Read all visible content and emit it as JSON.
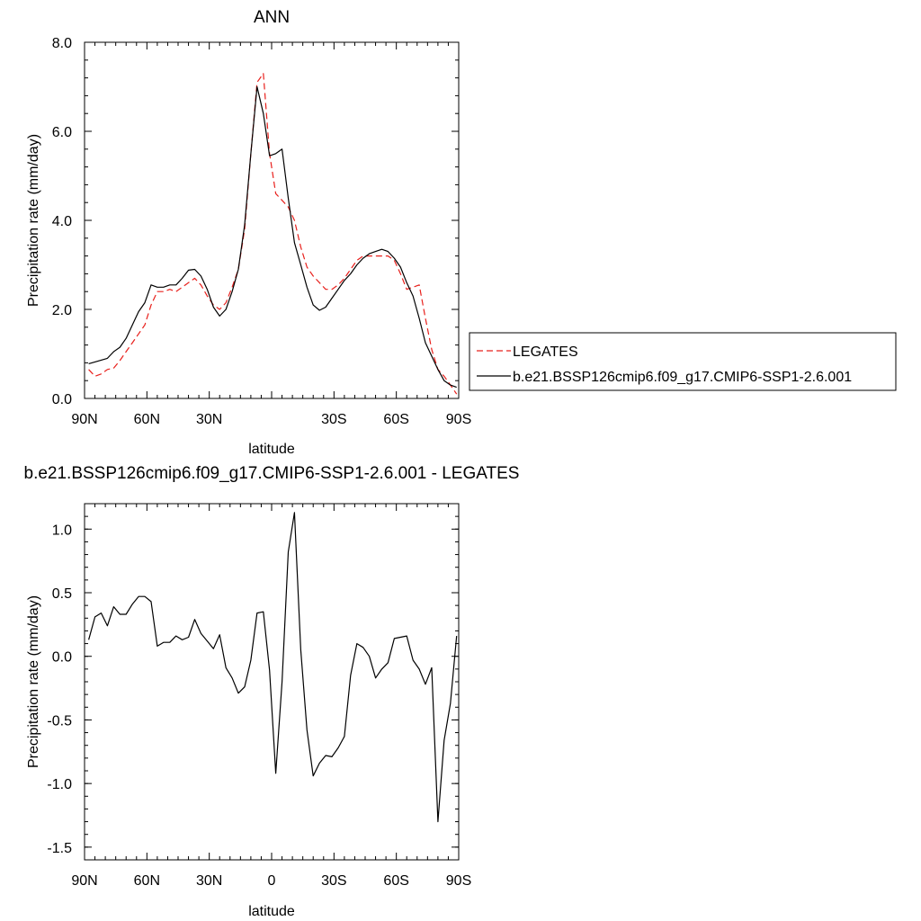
{
  "chart_data": [
    {
      "type": "line",
      "title": "ANN",
      "xlabel": "latitude",
      "ylabel": "Precipitation rate (mm/day)",
      "xlim": [
        -90,
        90
      ],
      "ylim": [
        0,
        8
      ],
      "x_ticks": [
        -90,
        -60,
        -30,
        0,
        30,
        60,
        90
      ],
      "x_tick_labels": [
        "90N",
        "60N",
        "30N",
        "",
        "30S",
        "60S",
        "90S"
      ],
      "y_ticks": [
        0,
        2,
        4,
        6,
        8
      ],
      "y_tick_labels": [
        "0.0",
        "2.0",
        "4.0",
        "6.0",
        "8.0"
      ],
      "legend_position": "right",
      "series": [
        {
          "name": "LEGATES",
          "color": "#e8201c",
          "dash": true,
          "x": [
            -88,
            -85,
            -82,
            -79,
            -76,
            -73,
            -70,
            -67,
            -64,
            -61,
            -58,
            -55,
            -52,
            -49,
            -46,
            -43,
            -40,
            -37,
            -34,
            -31,
            -28,
            -25,
            -22,
            -19,
            -16,
            -13,
            -10,
            -7,
            -4,
            -1,
            2,
            5,
            8,
            11,
            14,
            17,
            20,
            23,
            26,
            29,
            32,
            35,
            38,
            41,
            44,
            47,
            50,
            53,
            56,
            59,
            62,
            65,
            68,
            71,
            74,
            77,
            80,
            83,
            86,
            89
          ],
          "y": [
            0.65,
            0.5,
            0.55,
            0.65,
            0.68,
            0.85,
            1.05,
            1.25,
            1.45,
            1.65,
            2.1,
            2.4,
            2.4,
            2.45,
            2.4,
            2.5,
            2.6,
            2.7,
            2.55,
            2.3,
            2.1,
            2.0,
            2.15,
            2.5,
            2.9,
            3.8,
            5.5,
            7.1,
            7.3,
            5.5,
            4.6,
            4.45,
            4.3,
            4.0,
            3.4,
            2.95,
            2.75,
            2.6,
            2.45,
            2.45,
            2.55,
            2.7,
            2.9,
            3.1,
            3.2,
            3.2,
            3.2,
            3.2,
            3.2,
            3.1,
            2.8,
            2.45,
            2.5,
            2.55,
            1.8,
            1.1,
            0.65,
            0.5,
            0.3,
            0.1
          ]
        },
        {
          "name": "b.e21.BSSP126cmip6.f09_g17.CMIP6-SSP1-2.6.001",
          "color": "#000000",
          "dash": false,
          "x": [
            -88,
            -85,
            -82,
            -79,
            -76,
            -73,
            -70,
            -67,
            -64,
            -61,
            -58,
            -55,
            -52,
            -49,
            -46,
            -43,
            -40,
            -37,
            -34,
            -31,
            -28,
            -25,
            -22,
            -19,
            -16,
            -13,
            -10,
            -7,
            -4,
            -1,
            2,
            5,
            8,
            11,
            14,
            17,
            20,
            23,
            26,
            29,
            32,
            35,
            38,
            41,
            44,
            47,
            50,
            53,
            56,
            59,
            62,
            65,
            68,
            71,
            74,
            77,
            80,
            83,
            86,
            89
          ],
          "y": [
            0.78,
            0.82,
            0.86,
            0.9,
            1.05,
            1.15,
            1.35,
            1.65,
            1.95,
            2.15,
            2.55,
            2.5,
            2.5,
            2.55,
            2.55,
            2.7,
            2.88,
            2.9,
            2.75,
            2.45,
            2.05,
            1.85,
            2.0,
            2.4,
            2.9,
            3.9,
            5.5,
            7.0,
            6.4,
            5.45,
            5.5,
            5.6,
            4.5,
            3.5,
            3.0,
            2.5,
            2.1,
            1.98,
            2.05,
            2.25,
            2.45,
            2.65,
            2.8,
            3.0,
            3.15,
            3.25,
            3.3,
            3.35,
            3.3,
            3.15,
            2.95,
            2.6,
            2.3,
            1.8,
            1.25,
            0.95,
            0.65,
            0.4,
            0.3,
            0.25
          ]
        }
      ]
    },
    {
      "type": "line",
      "title": "b.e21.BSSP126cmip6.f09_g17.CMIP6-SSP1-2.6.001 - LEGATES",
      "xlabel": "latitude",
      "ylabel": "Precipitation rate (mm/day)",
      "xlim": [
        -90,
        90
      ],
      "ylim": [
        -1.6,
        1.2
      ],
      "x_ticks": [
        -90,
        -60,
        -30,
        0,
        30,
        60,
        90
      ],
      "x_tick_labels": [
        "90N",
        "60N",
        "30N",
        "0",
        "30S",
        "60S",
        "90S"
      ],
      "y_ticks": [
        -1.5,
        -1.0,
        -0.5,
        0.0,
        0.5,
        1.0
      ],
      "y_tick_labels": [
        "-1.5",
        "-1.0",
        "-0.5",
        "0.0",
        "0.5",
        "1.0"
      ],
      "series": [
        {
          "color": "#000000",
          "dash": false,
          "x": [
            -88,
            -85,
            -82,
            -79,
            -76,
            -73,
            -70,
            -67,
            -64,
            -61,
            -58,
            -55,
            -52,
            -49,
            -46,
            -43,
            -40,
            -37,
            -34,
            -31,
            -28,
            -25,
            -22,
            -19,
            -16,
            -13,
            -10,
            -7,
            -4,
            -1,
            2,
            5,
            8,
            11,
            14,
            17,
            20,
            23,
            26,
            29,
            32,
            35,
            38,
            41,
            44,
            47,
            50,
            53,
            56,
            59,
            62,
            65,
            68,
            71,
            74,
            77,
            80,
            83,
            86,
            89
          ],
          "y": [
            0.13,
            0.31,
            0.34,
            0.24,
            0.39,
            0.33,
            0.33,
            0.41,
            0.47,
            0.47,
            0.43,
            0.08,
            0.11,
            0.11,
            0.16,
            0.13,
            0.15,
            0.29,
            0.18,
            0.12,
            0.06,
            0.17,
            -0.09,
            -0.17,
            -0.29,
            -0.24,
            -0.03,
            0.34,
            0.35,
            -0.11,
            -0.92,
            -0.2,
            0.82,
            1.13,
            0.05,
            -0.58,
            -0.94,
            -0.84,
            -0.78,
            -0.79,
            -0.72,
            -0.63,
            -0.15,
            0.1,
            0.07,
            0.0,
            -0.17,
            -0.1,
            -0.05,
            0.14,
            0.15,
            0.16,
            -0.03,
            -0.1,
            -0.22,
            -0.09,
            -1.3,
            -0.66,
            -0.37,
            0.16
          ]
        }
      ]
    }
  ]
}
